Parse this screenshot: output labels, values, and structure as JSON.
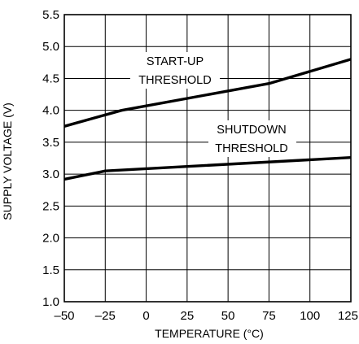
{
  "chart_data": {
    "type": "line",
    "title": "",
    "xlabel": "TEMPERATURE (°C)",
    "ylabel": "SUPPLY VOLTAGE (V)",
    "xlim": [
      -50,
      125
    ],
    "ylim": [
      1.0,
      5.5
    ],
    "x_ticks": [
      -50,
      -25,
      0,
      25,
      50,
      75,
      100,
      125
    ],
    "x_tick_labels": [
      "–50",
      "–25",
      "0",
      "25",
      "50",
      "75",
      "100",
      "125"
    ],
    "y_ticks": [
      1.0,
      1.5,
      2.0,
      2.5,
      3.0,
      3.5,
      4.0,
      4.5,
      5.0,
      5.5
    ],
    "y_tick_labels": [
      "1.0",
      "1.5",
      "2.0",
      "2.5",
      "3.0",
      "3.5",
      "4.0",
      "4.5",
      "5.0",
      "5.5"
    ],
    "grid": true,
    "series": [
      {
        "name": "START-UP THRESHOLD",
        "x": [
          -50,
          -15,
          75,
          125
        ],
        "y": [
          3.75,
          4.0,
          4.42,
          4.8
        ]
      },
      {
        "name": "SHUTDOWN THRESHOLD",
        "x": [
          -50,
          -25,
          125
        ],
        "y": [
          2.92,
          3.05,
          3.26
        ]
      }
    ],
    "annotations": [
      {
        "lines": [
          "START-UP",
          "THRESHOLD"
        ],
        "series": 0
      },
      {
        "lines": [
          "SHUTDOWN",
          "THRESHOLD"
        ],
        "series": 1
      }
    ]
  }
}
